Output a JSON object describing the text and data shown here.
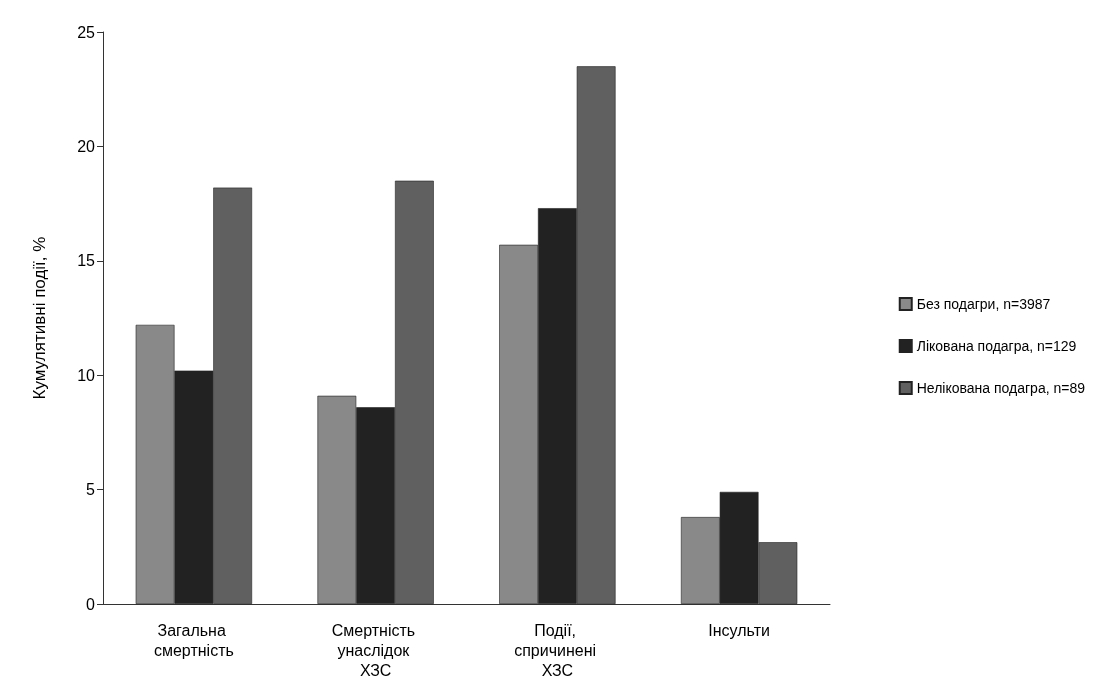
{
  "chart_data": {
    "type": "bar",
    "ylabel": "Кумулятивні події, %",
    "categories": [
      "Загальна смертність",
      "Смертність унаслідок ХЗС",
      "Події, спричинені ХЗС",
      "Інсульти"
    ],
    "series": [
      {
        "name": "Без подагри, n=3987",
        "color": "#898989",
        "values": [
          12.2,
          9.1,
          15.7,
          3.8
        ]
      },
      {
        "name": "Лікована подагра, n=129",
        "color": "#222222",
        "values": [
          10.2,
          8.6,
          17.3,
          4.9
        ]
      },
      {
        "name": "Нелікована подагра, n=89",
        "color": "#606060",
        "values": [
          18.2,
          18.5,
          23.5,
          2.7
        ]
      }
    ],
    "ylim": [
      0,
      25
    ],
    "yticks": [
      0,
      5,
      10,
      15,
      20,
      25
    ],
    "grid": false,
    "legend": "right"
  }
}
